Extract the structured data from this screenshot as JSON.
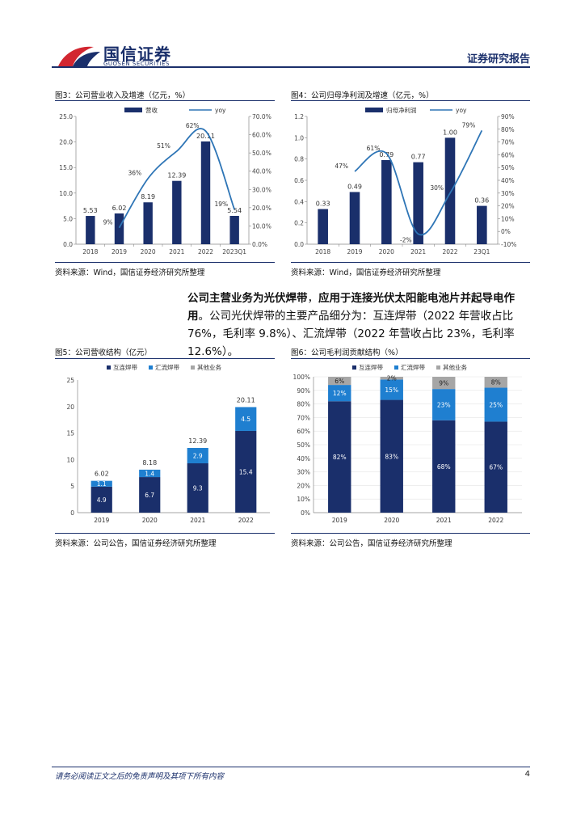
{
  "header": {
    "logo_cn": "国信证券",
    "logo_en": "GUOSEN SECURITIES",
    "right": "证券研究报告",
    "accent": "#1a2f6b",
    "logo_red": "#d22630"
  },
  "fig3": {
    "title": "图3：公司营业收入及增速（亿元，%）",
    "source": "资料来源：Wind，国信证券经济研究所整理"
  },
  "fig4": {
    "title": "图4：公司归母净利润及增速（亿元，%）",
    "source": "资料来源：Wind，国信证券经济研究所整理"
  },
  "paragraph": {
    "bold1": "公司主营业务为光伏焊带",
    "text1": "，",
    "bold2": "应用于连接光伏太阳能电池片并起导电作用",
    "text2": "。公司光伏焊带的主要产品细分为：互连焊带（2022 年营收占比 76%，毛利率 9.8%）、汇流焊带（2022 年营收占比 23%，毛利率 12.6%）。"
  },
  "fig5": {
    "title": "图5：公司营收结构（亿元）",
    "source": "资料来源：公司公告，国信证券经济研究所整理"
  },
  "fig6": {
    "title": "图6：公司毛利润贡献结构（%）",
    "source": "资料来源：公司公告，国信证券经济研究所整理"
  },
  "footer": {
    "disclaimer": "请务必阅读正文之后的免责声明及其项下所有内容",
    "page": "4"
  },
  "chart_data": [
    {
      "id": "fig3",
      "type": "bar",
      "categories": [
        "2018",
        "2019",
        "2020",
        "2021",
        "2022",
        "2023Q1"
      ],
      "series": [
        {
          "name": "营收",
          "type": "bar",
          "axis": "left",
          "values": [
            5.53,
            6.02,
            8.19,
            12.39,
            20.11,
            5.54
          ],
          "labels": [
            "5.53",
            "6.02",
            "8.19",
            "12.39",
            "20.11",
            "5.54"
          ],
          "color": "#1a2f6b"
        },
        {
          "name": "yoy",
          "type": "line",
          "axis": "right",
          "values": [
            null,
            9,
            36,
            51,
            62,
            19
          ],
          "labels": [
            "",
            "9%",
            "36%",
            "51%",
            "62%",
            "19%"
          ],
          "color": "#2e75b6"
        }
      ],
      "ylim": [
        0,
        25
      ],
      "yticks": [
        "0.0",
        "5.0",
        "10.0",
        "15.0",
        "20.0",
        "25.0"
      ],
      "y2lim": [
        0,
        70
      ],
      "y2ticks": [
        "0.0%",
        "10.0%",
        "20.0%",
        "30.0%",
        "40.0%",
        "50.0%",
        "60.0%",
        "70.0%"
      ],
      "legend": "top-center"
    },
    {
      "id": "fig4",
      "type": "bar",
      "categories": [
        "2018",
        "2019",
        "2020",
        "2021",
        "2022",
        "23Q1"
      ],
      "series": [
        {
          "name": "归母净利润",
          "type": "bar",
          "axis": "left",
          "values": [
            0.33,
            0.49,
            0.79,
            0.77,
            1.0,
            0.36
          ],
          "labels": [
            "0.33",
            "0.49",
            "0.79",
            "0.77",
            "1.00",
            "0.36"
          ],
          "color": "#1a2f6b"
        },
        {
          "name": "yoy",
          "type": "line",
          "axis": "right",
          "values": [
            null,
            47,
            61,
            -2,
            30,
            79
          ],
          "labels": [
            "",
            "47%",
            "61%",
            "-2%",
            "30%",
            "79%"
          ],
          "color": "#2e75b6"
        }
      ],
      "ylim": [
        0,
        1.2
      ],
      "yticks": [
        "0.0",
        "0.2",
        "0.4",
        "0.6",
        "0.8",
        "1.0",
        "1.2"
      ],
      "y2lim": [
        -10,
        90
      ],
      "y2ticks": [
        "-10%",
        "0%",
        "10%",
        "20%",
        "30%",
        "40%",
        "50%",
        "60%",
        "70%",
        "80%",
        "90%"
      ],
      "legend": "top-center"
    },
    {
      "id": "fig5",
      "type": "bar",
      "stacked": true,
      "categories": [
        "2019",
        "2020",
        "2021",
        "2022"
      ],
      "series": [
        {
          "name": "互连焊带",
          "values": [
            4.9,
            6.7,
            9.3,
            15.4
          ],
          "color": "#1a2f6b"
        },
        {
          "name": "汇流焊带",
          "values": [
            1.1,
            1.4,
            2.9,
            4.5
          ],
          "color": "#1f7fd0"
        },
        {
          "name": "其他业务",
          "values": [
            0,
            0,
            0,
            0
          ],
          "color": "#a6a6a6"
        }
      ],
      "totals": [
        "6.02",
        "8.18",
        "12.39",
        "20.11"
      ],
      "ylim": [
        0,
        25
      ],
      "yticks": [
        "0",
        "5",
        "10",
        "15",
        "20",
        "25"
      ],
      "legend": "top-center"
    },
    {
      "id": "fig6",
      "type": "bar",
      "stacked": true,
      "categories": [
        "2019",
        "2020",
        "2021",
        "2022"
      ],
      "series": [
        {
          "name": "互连焊带",
          "values": [
            82,
            83,
            68,
            67
          ],
          "color": "#1a2f6b"
        },
        {
          "name": "汇流焊带",
          "values": [
            12,
            15,
            23,
            25
          ],
          "color": "#1f7fd0"
        },
        {
          "name": "其他业务",
          "values": [
            6,
            2,
            9,
            8
          ],
          "color": "#a6a6a6"
        }
      ],
      "ylim": [
        0,
        100
      ],
      "yticks": [
        "0%",
        "10%",
        "20%",
        "30%",
        "40%",
        "50%",
        "60%",
        "70%",
        "80%",
        "90%",
        "100%"
      ],
      "legend": "top-center"
    }
  ]
}
